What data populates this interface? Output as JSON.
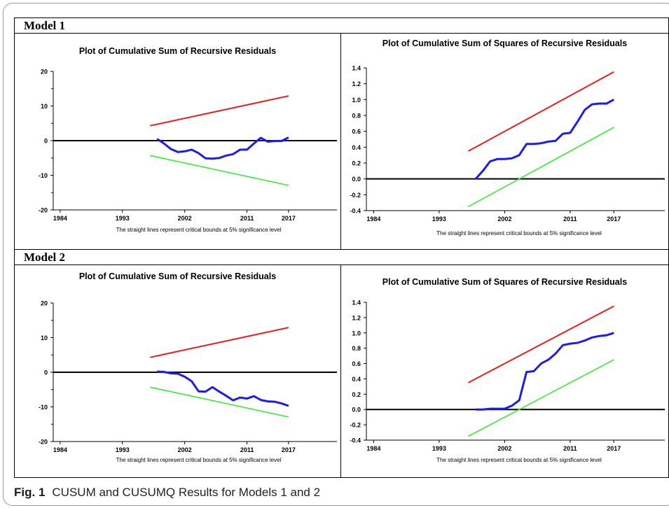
{
  "models": [
    {
      "label": "Model 1"
    },
    {
      "label": "Model 2"
    }
  ],
  "caption": {
    "prefix": "Fig. 1",
    "text": "CUSUM and CUSUMQ Results for Models 1 and 2"
  },
  "colors": {
    "upper_bound": "#ee1c1c",
    "lower_bound": "#33ee33",
    "statistic": "#1c1cee",
    "zero_line": "#000000"
  },
  "chart_data": [
    {
      "id": "m1-cusum",
      "type": "line",
      "title": "Plot of Cumulative Sum of Recursive Residuals",
      "note": "The straight lines represent critical bounds at 5% significance level",
      "xlim": [
        1983,
        2024
      ],
      "ylim": [
        -20,
        20
      ],
      "xticks": [
        "1984",
        "1993",
        "2002",
        "2011",
        "2017"
      ],
      "yticks": [
        "-20",
        "-10",
        "0",
        "10",
        "20"
      ],
      "series": [
        {
          "x": [
            1997,
            2017
          ],
          "y": [
            4.3,
            12.9
          ]
        },
        {
          "x": [
            1997,
            2017
          ],
          "y": [
            -4.3,
            -12.9
          ]
        },
        {
          "x": [
            1998,
            1999,
            2000,
            2001,
            2002,
            2003,
            2004,
            2005,
            2006,
            2007,
            2008,
            2009,
            2010,
            2011,
            2012,
            2013,
            2014,
            2015,
            2016,
            2017
          ],
          "y": [
            0.5,
            -0.8,
            -2.4,
            -3.3,
            -3.1,
            -2.6,
            -3.6,
            -5.1,
            -5.2,
            -5.0,
            -4.3,
            -3.9,
            -2.6,
            -2.6,
            -0.8,
            0.8,
            -0.3,
            -0.1,
            -0.1,
            0.9
          ]
        }
      ]
    },
    {
      "id": "m1-cusumsq",
      "type": "line",
      "title": "Plot of Cumulative Sum of Squares of Recursive Residuals",
      "note": "The straight lines represent critical bounds at 5% significance level",
      "xlim": [
        1983,
        2024
      ],
      "ylim": [
        -0.4,
        1.4
      ],
      "xticks": [
        "1984",
        "1993",
        "2002",
        "2011",
        "2017"
      ],
      "yticks": [
        "-0.4",
        "-0.2",
        "0.0",
        "0.2",
        "0.4",
        "0.6",
        "0.8",
        "1.0",
        "1.2",
        "1.4"
      ],
      "series": [
        {
          "x": [
            1997,
            2017
          ],
          "y": [
            0.35,
            1.35
          ]
        },
        {
          "x": [
            1997,
            2017
          ],
          "y": [
            -0.35,
            0.65
          ]
        },
        {
          "x": [
            1998,
            1999,
            2000,
            2001,
            2002,
            2003,
            2004,
            2005,
            2006,
            2007,
            2008,
            2009,
            2010,
            2011,
            2012,
            2013,
            2014,
            2015,
            2016,
            2017
          ],
          "y": [
            0.0,
            0.1,
            0.22,
            0.25,
            0.25,
            0.26,
            0.3,
            0.44,
            0.44,
            0.45,
            0.47,
            0.48,
            0.57,
            0.58,
            0.72,
            0.87,
            0.94,
            0.95,
            0.95,
            1.0
          ]
        }
      ]
    },
    {
      "id": "m2-cusum",
      "type": "line",
      "title": "Plot of Cumulative Sum of Recursive Residuals",
      "note": "The straight lines represent critical bounds at 5% significance level",
      "xlim": [
        1983,
        2024
      ],
      "ylim": [
        -20,
        20
      ],
      "xticks": [
        "1984",
        "1993",
        "2002",
        "2011",
        "2017"
      ],
      "yticks": [
        "-20",
        "-10",
        "0",
        "10",
        "20"
      ],
      "series": [
        {
          "x": [
            1997,
            2017
          ],
          "y": [
            4.3,
            12.9
          ]
        },
        {
          "x": [
            1997,
            2017
          ],
          "y": [
            -4.3,
            -12.9
          ]
        },
        {
          "x": [
            1998,
            1999,
            2000,
            2001,
            2002,
            2003,
            2004,
            2005,
            2006,
            2007,
            2008,
            2009,
            2010,
            2011,
            2012,
            2013,
            2014,
            2015,
            2016,
            2017
          ],
          "y": [
            0.2,
            0.1,
            -0.3,
            -0.4,
            -1.3,
            -2.6,
            -5.5,
            -5.6,
            -4.3,
            -5.6,
            -6.8,
            -8.1,
            -7.3,
            -7.6,
            -6.9,
            -8.0,
            -8.4,
            -8.5,
            -9.0,
            -9.7
          ]
        }
      ]
    },
    {
      "id": "m2-cusumsq",
      "type": "line",
      "title": "Plot of Cumulative Sum of Squares of Recursive Residuals",
      "note": "The straight lines represent critical bounds at 5% significance level",
      "xlim": [
        1983,
        2024
      ],
      "ylim": [
        -0.4,
        1.4
      ],
      "xticks": [
        "1984",
        "1993",
        "2002",
        "2011",
        "2017"
      ],
      "yticks": [
        "-0.4",
        "-0.2",
        "0.0",
        "0.2",
        "0.4",
        "0.6",
        "0.8",
        "1.0",
        "1.2",
        "1.4"
      ],
      "series": [
        {
          "x": [
            1997,
            2017
          ],
          "y": [
            0.35,
            1.35
          ]
        },
        {
          "x": [
            1997,
            2017
          ],
          "y": [
            -0.35,
            0.65
          ]
        },
        {
          "x": [
            1998,
            1999,
            2000,
            2001,
            2002,
            2003,
            2004,
            2005,
            2006,
            2007,
            2008,
            2009,
            2010,
            2011,
            2012,
            2013,
            2014,
            2015,
            2016,
            2017
          ],
          "y": [
            0.0,
            0.0,
            0.01,
            0.01,
            0.01,
            0.05,
            0.12,
            0.49,
            0.5,
            0.6,
            0.65,
            0.73,
            0.84,
            0.86,
            0.87,
            0.9,
            0.94,
            0.96,
            0.97,
            1.0
          ]
        }
      ]
    }
  ]
}
